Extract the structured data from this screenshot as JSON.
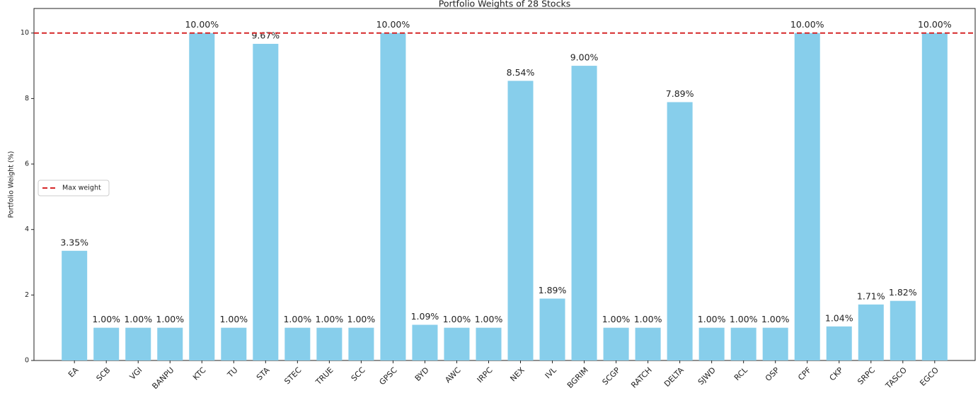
{
  "chart_data": {
    "type": "bar",
    "title": "Portfolio Weights of 28 Stocks",
    "ylabel": "Portfolio Weight (%)",
    "categories": [
      "EA",
      "SCB",
      "VGI",
      "BANPU",
      "KTC",
      "TU",
      "STA",
      "STEC",
      "TRUE",
      "SCC",
      "GPSC",
      "BYD",
      "AWC",
      "IRPC",
      "NEX",
      "IVL",
      "BGRIM",
      "SCGP",
      "RATCH",
      "DELTA",
      "SJWD",
      "RCL",
      "OSP",
      "CPF",
      "CKP",
      "SRPC",
      "TASCO",
      "EGCO"
    ],
    "values": [
      3.35,
      1,
      1,
      1,
      10,
      1,
      9.67,
      1,
      1,
      1,
      10,
      1.09,
      1,
      1,
      8.54,
      1.89,
      9,
      1,
      1,
      7.89,
      1,
      1,
      1,
      10,
      1.04,
      1.71,
      1.82,
      10
    ],
    "value_labels": [
      "3.35%",
      "1.00%",
      "1.00%",
      "1.00%",
      "10.00%",
      "1.00%",
      "9.67%",
      "1.00%",
      "1.00%",
      "1.00%",
      "10.00%",
      "1.09%",
      "1.00%",
      "1.00%",
      "8.54%",
      "1.89%",
      "9.00%",
      "1.00%",
      "1.00%",
      "7.89%",
      "1.00%",
      "1.00%",
      "1.00%",
      "10.00%",
      "1.04%",
      "1.71%",
      "1.82%",
      "10.00%"
    ],
    "color": "#87ceeb",
    "ylim": [
      0,
      10.75
    ],
    "yticks": [
      0,
      2,
      4,
      6,
      8,
      10
    ],
    "reference_line": {
      "name": "Max weight",
      "value": 10,
      "color": "#d62728"
    },
    "legend": "center left"
  }
}
